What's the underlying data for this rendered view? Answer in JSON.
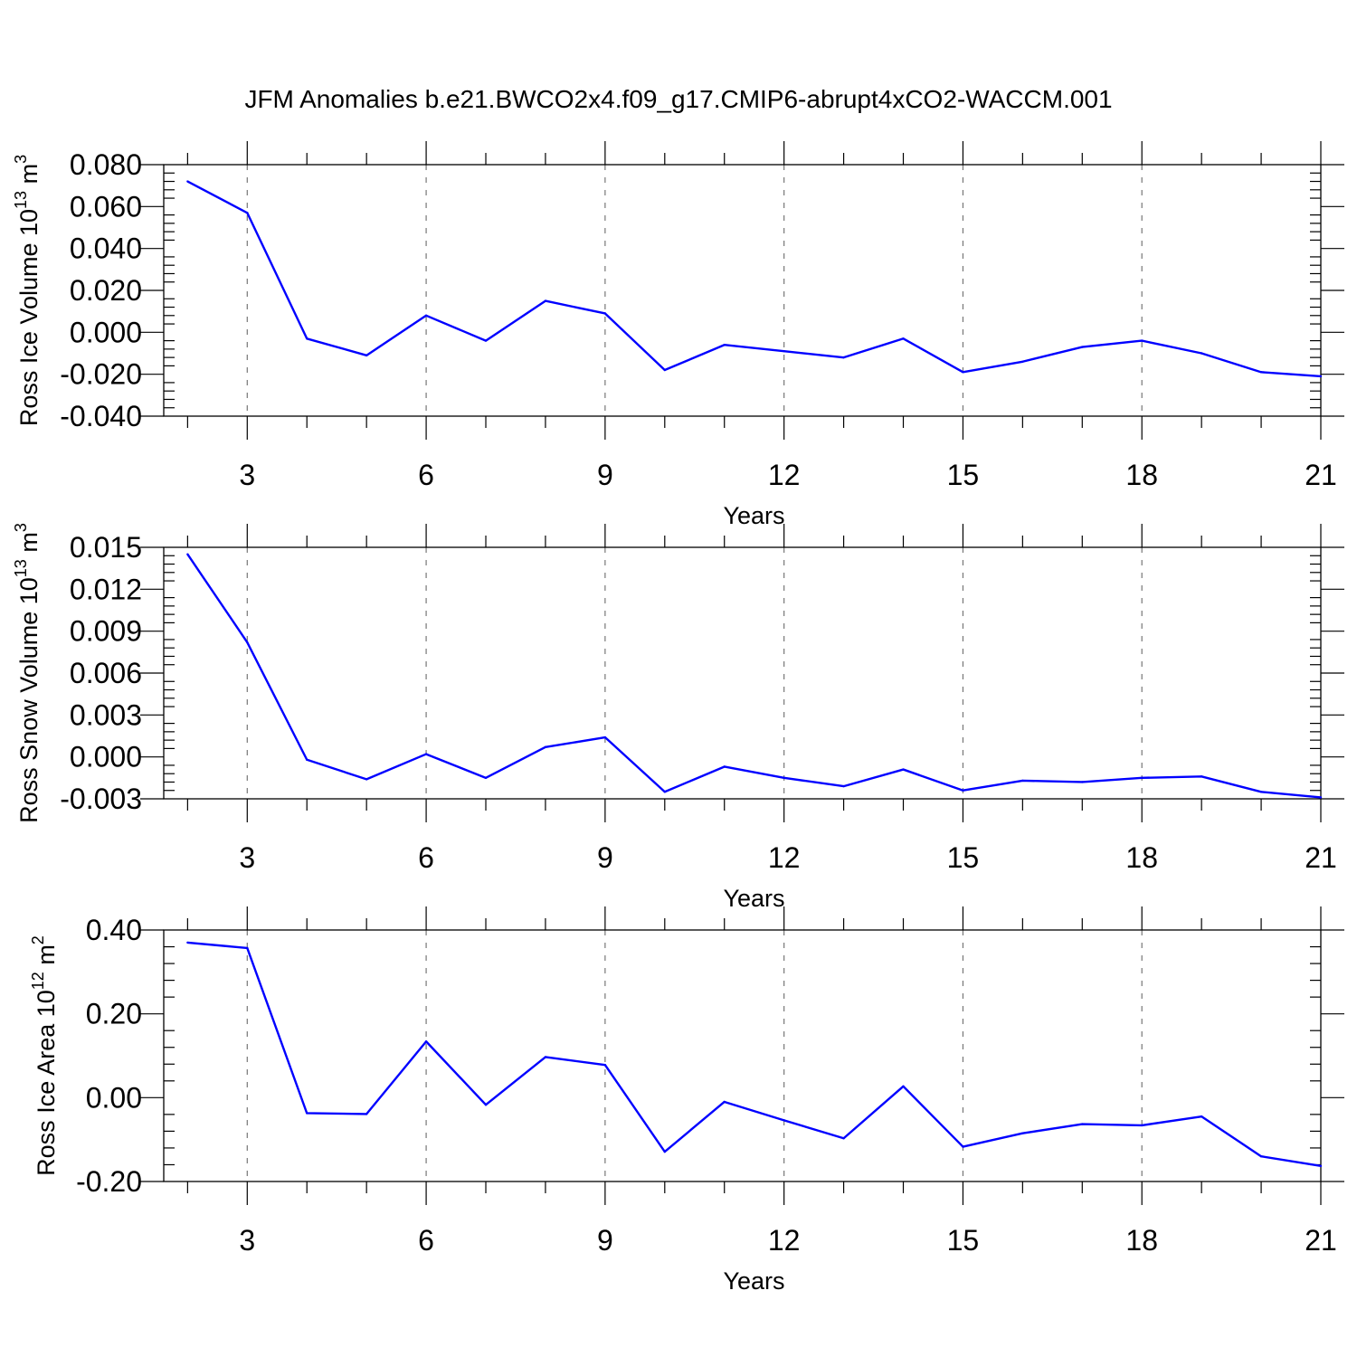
{
  "chart_data": {
    "type": "line",
    "title": "JFM Anomalies b.e21.BWCO2x4.f09_g17.CMIP6-abrupt4xCO2-WACCM.001",
    "colors": {
      "line": "#0000ff",
      "axis": "#000000",
      "grid": "#777777"
    },
    "panels": [
      {
        "ylabel": {
          "main": "Ross Ice Volume 10",
          "exponent": "13",
          "unit": " m",
          "unit_exponent": "3"
        },
        "xlabel": "Years",
        "x": [
          2,
          3,
          4,
          5,
          6,
          7,
          8,
          9,
          10,
          11,
          12,
          13,
          14,
          15,
          16,
          17,
          18,
          19,
          20,
          21
        ],
        "y": [
          0.072,
          0.057,
          -0.003,
          -0.011,
          0.008,
          -0.004,
          0.015,
          0.009,
          -0.018,
          -0.006,
          -0.009,
          -0.012,
          -0.003,
          -0.019,
          -0.014,
          -0.007,
          -0.004,
          -0.01,
          -0.019,
          -0.021
        ],
        "xlim": [
          1.6,
          21
        ],
        "ylim": [
          -0.04,
          0.08
        ],
        "xticks": [
          3,
          6,
          9,
          12,
          15,
          18,
          21
        ],
        "xtick_labels": [
          "3",
          "6",
          "9",
          "12",
          "15",
          "18",
          "21"
        ],
        "yticks": [
          -0.04,
          -0.02,
          0,
          0.02,
          0.04,
          0.06,
          0.08
        ],
        "ytick_labels": [
          "-0.040",
          "-0.020",
          "0.000",
          "0.020",
          "0.040",
          "0.060",
          "0.080"
        ],
        "grid": "vertical dashed at major x ticks"
      },
      {
        "ylabel": {
          "main": "Ross Snow Volume 10",
          "exponent": "13",
          "unit": " m",
          "unit_exponent": "3"
        },
        "xlabel": "Years",
        "x": [
          2,
          3,
          4,
          5,
          6,
          7,
          8,
          9,
          10,
          11,
          12,
          13,
          14,
          15,
          16,
          17,
          18,
          19,
          20,
          21
        ],
        "y": [
          0.0145,
          0.0082,
          -0.0002,
          -0.0016,
          0.0002,
          -0.0015,
          0.0007,
          0.0014,
          -0.0025,
          -0.0007,
          -0.0015,
          -0.0021,
          -0.0009,
          -0.0024,
          -0.0017,
          -0.0018,
          -0.0015,
          -0.0014,
          -0.0025,
          -0.0029
        ],
        "xlim": [
          1.6,
          21
        ],
        "ylim": [
          -0.003,
          0.015
        ],
        "xticks": [
          3,
          6,
          9,
          12,
          15,
          18,
          21
        ],
        "xtick_labels": [
          "3",
          "6",
          "9",
          "12",
          "15",
          "18",
          "21"
        ],
        "yticks": [
          -0.003,
          0,
          0.003,
          0.006,
          0.009,
          0.012,
          0.015
        ],
        "ytick_labels": [
          "-0.003",
          "0.000",
          "0.003",
          "0.006",
          "0.009",
          "0.012",
          "0.015"
        ],
        "grid": "vertical dashed at major x ticks"
      },
      {
        "ylabel": {
          "main": "Ross Ice Area 10",
          "exponent": "12",
          "unit": " m",
          "unit_exponent": "2"
        },
        "xlabel": "Years",
        "x": [
          2,
          3,
          4,
          5,
          6,
          7,
          8,
          9,
          10,
          11,
          12,
          13,
          14,
          15,
          16,
          17,
          18,
          19,
          20,
          21
        ],
        "y": [
          0.37,
          0.357,
          -0.037,
          -0.039,
          0.134,
          -0.017,
          0.097,
          0.078,
          -0.129,
          -0.01,
          -0.054,
          -0.097,
          0.027,
          -0.117,
          -0.085,
          -0.063,
          -0.066,
          -0.045,
          -0.14,
          -0.163
        ],
        "xlim": [
          1.6,
          21
        ],
        "ylim": [
          -0.2,
          0.4
        ],
        "xticks": [
          3,
          6,
          9,
          12,
          15,
          18,
          21
        ],
        "xtick_labels": [
          "3",
          "6",
          "9",
          "12",
          "15",
          "18",
          "21"
        ],
        "yticks": [
          -0.2,
          0,
          0.2,
          0.4
        ],
        "ytick_labels": [
          "-0.20",
          "0.00",
          "0.20",
          "0.40"
        ],
        "grid": "vertical dashed at major x ticks"
      }
    ]
  }
}
